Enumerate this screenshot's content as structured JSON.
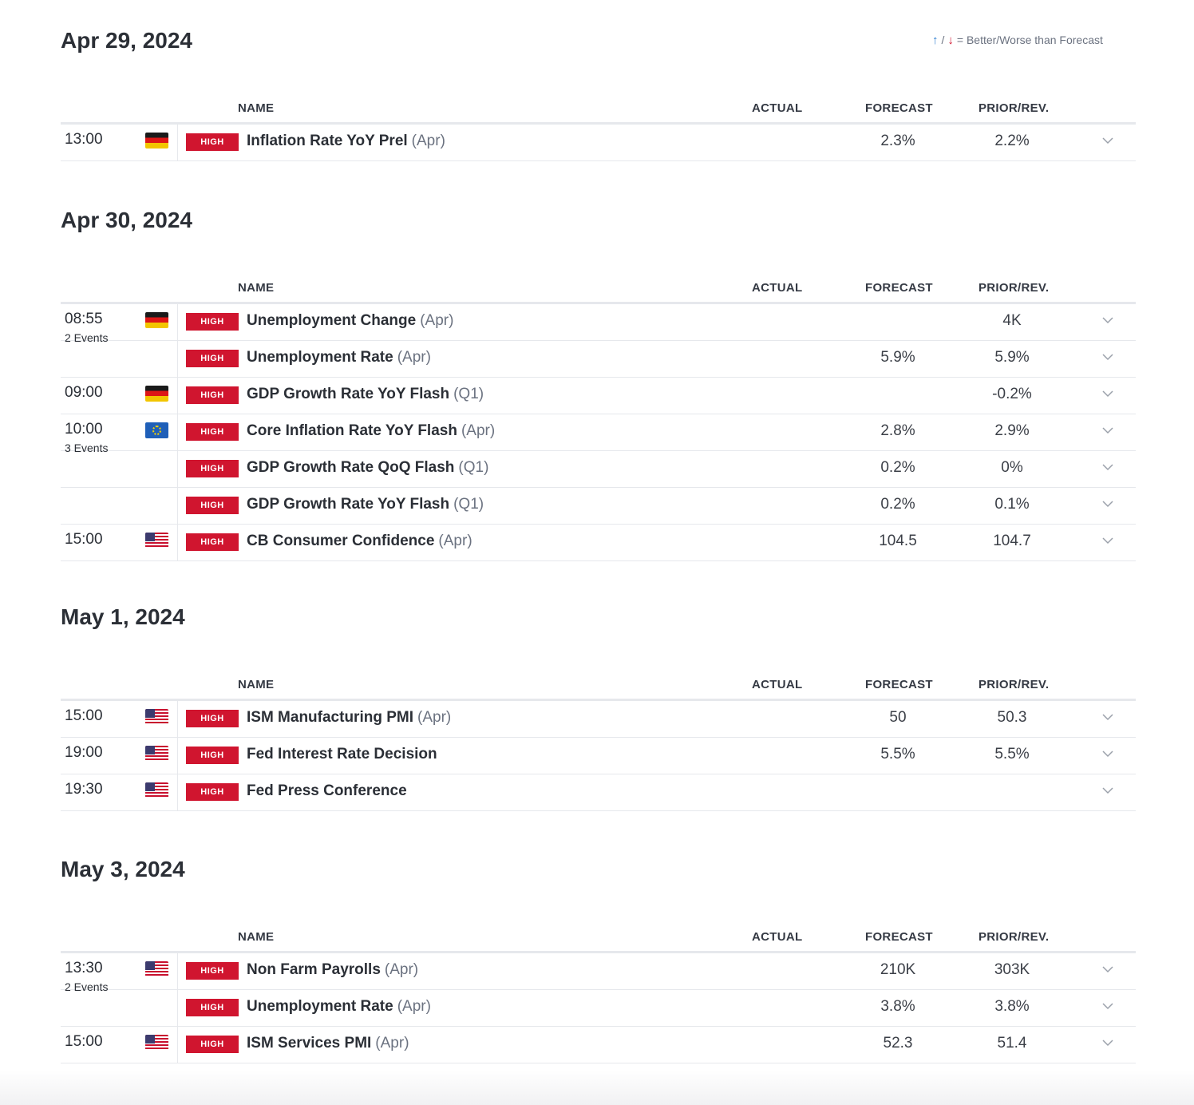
{
  "legend": {
    "up_icon": "arrow-up-icon",
    "down_icon": "arrow-down-icon",
    "sep": "/",
    "text": "= Better/Worse than Forecast"
  },
  "headers": {
    "name": "NAME",
    "actual": "ACTUAL",
    "forecast": "FORECAST",
    "prior": "PRIOR/REV."
  },
  "badge_label": "HIGH",
  "days": [
    {
      "title": "Apr 29, 2024",
      "rows": [
        {
          "time": "13:00",
          "events": "",
          "country": "de",
          "name": "Inflation Rate YoY Prel",
          "period": "(Apr)",
          "actual": "",
          "forecast": "2.3%",
          "prior": "2.2%"
        }
      ]
    },
    {
      "title": "Apr 30, 2024",
      "rows": [
        {
          "time": "08:55",
          "events": "2 Events",
          "country": "de",
          "name": "Unemployment Change",
          "period": "(Apr)",
          "actual": "",
          "forecast": "",
          "prior": "4K"
        },
        {
          "time": "",
          "events": "",
          "country": "",
          "name": "Unemployment Rate",
          "period": "(Apr)",
          "actual": "",
          "forecast": "5.9%",
          "prior": "5.9%"
        },
        {
          "time": "09:00",
          "events": "",
          "country": "de",
          "name": "GDP Growth Rate YoY Flash",
          "period": "(Q1)",
          "actual": "",
          "forecast": "",
          "prior": "-0.2%"
        },
        {
          "time": "10:00",
          "events": "3 Events",
          "country": "eu",
          "name": "Core Inflation Rate YoY Flash",
          "period": "(Apr)",
          "actual": "",
          "forecast": "2.8%",
          "prior": "2.9%"
        },
        {
          "time": "",
          "events": "",
          "country": "",
          "name": "GDP Growth Rate QoQ Flash",
          "period": "(Q1)",
          "actual": "",
          "forecast": "0.2%",
          "prior": "0%"
        },
        {
          "time": "",
          "events": "",
          "country": "",
          "name": "GDP Growth Rate YoY Flash",
          "period": "(Q1)",
          "actual": "",
          "forecast": "0.2%",
          "prior": "0.1%"
        },
        {
          "time": "15:00",
          "events": "",
          "country": "us",
          "name": "CB Consumer Confidence",
          "period": "(Apr)",
          "actual": "",
          "forecast": "104.5",
          "prior": "104.7"
        }
      ]
    },
    {
      "title": "May 1, 2024",
      "rows": [
        {
          "time": "15:00",
          "events": "",
          "country": "us",
          "name": "ISM Manufacturing PMI",
          "period": "(Apr)",
          "actual": "",
          "forecast": "50",
          "prior": "50.3"
        },
        {
          "time": "19:00",
          "events": "",
          "country": "us",
          "name": "Fed Interest Rate Decision",
          "period": "",
          "actual": "",
          "forecast": "5.5%",
          "prior": "5.5%"
        },
        {
          "time": "19:30",
          "events": "",
          "country": "us",
          "name": "Fed Press Conference",
          "period": "",
          "actual": "",
          "forecast": "",
          "prior": ""
        }
      ]
    },
    {
      "title": "May 3, 2024",
      "rows": [
        {
          "time": "13:30",
          "events": "2 Events",
          "country": "us",
          "name": "Non Farm Payrolls",
          "period": "(Apr)",
          "actual": "",
          "forecast": "210K",
          "prior": "303K"
        },
        {
          "time": "",
          "events": "",
          "country": "",
          "name": "Unemployment Rate",
          "period": "(Apr)",
          "actual": "",
          "forecast": "3.8%",
          "prior": "3.8%"
        },
        {
          "time": "15:00",
          "events": "",
          "country": "us",
          "name": "ISM Services PMI",
          "period": "(Apr)",
          "actual": "",
          "forecast": "52.3",
          "prior": "51.4"
        }
      ]
    }
  ],
  "colors": {
    "badge": "#d0152f",
    "better": "#2f7fd1",
    "worse": "#d0152f",
    "divider": "#e6e8ec"
  }
}
